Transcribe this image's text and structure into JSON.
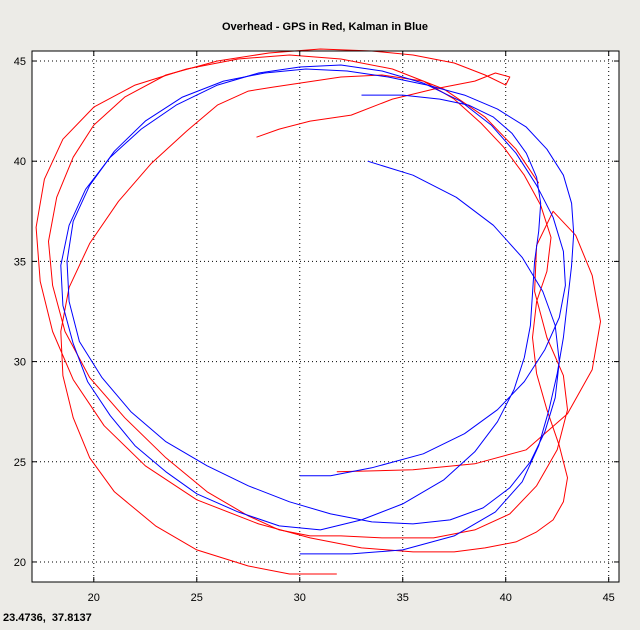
{
  "figure": {
    "background_color": "#ecebe7",
    "coordinate_readout": "23.4736,  37.8137"
  },
  "chart_data": {
    "type": "line",
    "title": "Overhead - GPS in Red, Kalman in Blue",
    "xlabel": "",
    "ylabel": "",
    "xlim": [
      17,
      45.5
    ],
    "ylim": [
      19,
      45.5
    ],
    "xticks": [
      20,
      25,
      30,
      35,
      40,
      45
    ],
    "yticks": [
      20,
      25,
      30,
      35,
      40,
      45
    ],
    "grid": true,
    "grid_style": "dotted",
    "legend": "none",
    "series": [
      {
        "color": "#ff0000",
        "x": [
          27.9,
          29.0,
          30.5,
          32.5,
          34.5,
          36.5,
          38.5,
          39.5,
          40.2,
          40.0,
          39.0,
          37.5,
          35.5,
          33.5,
          31.0,
          28.5,
          26.0,
          23.5,
          21.5,
          20.0,
          19.0,
          18.2,
          17.8,
          18.0,
          18.6,
          19.8,
          21.5,
          23.5,
          25.5,
          27.5,
          29.0,
          30.5,
          32.0,
          34.0,
          36.5,
          38.5,
          40.2,
          41.5,
          42.5,
          43.0,
          42.8,
          42.0,
          41.4,
          41.5,
          42.3,
          43.4,
          44.2,
          44.6,
          44.2,
          43.0,
          41.0,
          38.5,
          35.5,
          31.8
        ],
        "y": [
          41.2,
          41.6,
          42.0,
          42.3,
          43.1,
          43.6,
          44.0,
          44.4,
          44.2,
          43.8,
          44.3,
          44.9,
          45.3,
          45.5,
          45.6,
          45.4,
          45.0,
          44.3,
          43.2,
          41.8,
          40.2,
          38.2,
          36.0,
          33.8,
          31.5,
          29.2,
          27.2,
          25.2,
          23.5,
          22.3,
          21.6,
          21.3,
          21.3,
          21.2,
          21.2,
          21.6,
          22.4,
          23.8,
          25.6,
          27.6,
          29.3,
          31.2,
          33.5,
          35.8,
          37.5,
          36.3,
          34.3,
          32.0,
          29.6,
          27.4,
          25.6,
          24.9,
          24.6,
          24.5
        ]
      },
      {
        "color": "#ff0000",
        "x": [
          31.8,
          29.5,
          27.5,
          25.0,
          23.0,
          21.0,
          19.8,
          19.0,
          18.5,
          18.4,
          18.8,
          19.8,
          21.2,
          22.8,
          24.5,
          26.0,
          27.5,
          28.7,
          30.0,
          32.0,
          34.0,
          36.0,
          37.5,
          38.8,
          39.9,
          40.9,
          41.7,
          42.2,
          42.0,
          41.5,
          41.3,
          41.5,
          42.0,
          42.6,
          43.0,
          42.8,
          42.3,
          41.5,
          40.5,
          39.0,
          37.5,
          35.5,
          33.0,
          30.5,
          28.0,
          25.0,
          22.5,
          20.5,
          19.0,
          18.0,
          17.4,
          17.2,
          17.6,
          18.5,
          20.0,
          22.0,
          24.5,
          27.0,
          29.5,
          32.0,
          34.5,
          37.0,
          39.0,
          40.5,
          41.6
        ],
        "y": [
          19.4,
          19.4,
          19.8,
          20.6,
          21.8,
          23.5,
          25.2,
          27.2,
          29.3,
          31.5,
          33.7,
          35.9,
          38.0,
          39.9,
          41.5,
          42.8,
          43.5,
          43.7,
          43.9,
          44.2,
          44.3,
          44.0,
          43.1,
          41.9,
          40.7,
          39.3,
          37.8,
          36.2,
          34.5,
          33.0,
          31.2,
          29.4,
          27.6,
          25.8,
          24.2,
          23.0,
          22.1,
          21.5,
          21.0,
          20.7,
          20.5,
          20.5,
          20.7,
          21.2,
          21.9,
          23.1,
          24.8,
          26.8,
          29.1,
          31.5,
          34.0,
          36.7,
          39.1,
          41.1,
          42.7,
          43.8,
          44.6,
          45.1,
          45.3,
          45.1,
          44.6,
          43.6,
          42.2,
          40.6,
          38.9
        ]
      },
      {
        "color": "#0000ff",
        "x": [
          33.0,
          35.0,
          36.8,
          38.2,
          39.4,
          40.3,
          41.0,
          41.5,
          41.7,
          41.6,
          41.4,
          41.3,
          41.2,
          40.9,
          40.4,
          39.6,
          38.5,
          37.0,
          35.0,
          33.0,
          31.0,
          29.0,
          27.0,
          25.0,
          23.5,
          22.0,
          20.8,
          19.7,
          19.0,
          18.5,
          18.4,
          18.8,
          19.6,
          20.8,
          22.3,
          24.0,
          26.0,
          28.0,
          30.0,
          32.0,
          34.0,
          36.0,
          37.8,
          39.3,
          40.5,
          41.5,
          42.3,
          42.8,
          42.9,
          42.6,
          41.9,
          40.9,
          39.6,
          38.0,
          36.0,
          33.5,
          31.5,
          30.0
        ],
        "y": [
          43.3,
          43.3,
          43.1,
          42.8,
          42.2,
          41.4,
          40.4,
          39.2,
          37.9,
          36.5,
          35.0,
          33.4,
          31.8,
          30.2,
          28.6,
          27.0,
          25.5,
          24.1,
          22.9,
          22.1,
          21.6,
          21.8,
          22.5,
          23.4,
          24.5,
          25.8,
          27.3,
          29.0,
          30.9,
          32.8,
          34.8,
          36.8,
          38.6,
          40.2,
          41.6,
          42.8,
          43.8,
          44.4,
          44.7,
          44.8,
          44.5,
          43.9,
          43.0,
          41.8,
          40.4,
          38.8,
          37.2,
          35.5,
          33.8,
          32.2,
          30.6,
          29.0,
          27.6,
          26.4,
          25.4,
          24.7,
          24.3,
          24.3
        ]
      },
      {
        "color": "#0000ff",
        "x": [
          30.0,
          32.5,
          35.0,
          37.5,
          39.5,
          40.8,
          41.6,
          42.1,
          42.5,
          42.8,
          43.0,
          43.2,
          43.3,
          43.2,
          42.8,
          42.0,
          41.0,
          39.6,
          38.0,
          36.2,
          34.3,
          32.3,
          30.3,
          28.3,
          26.3,
          24.3,
          22.5,
          21.0,
          19.8,
          19.0,
          18.7,
          18.8,
          19.3,
          20.4,
          21.8,
          23.5,
          25.5,
          27.5,
          29.5,
          31.5,
          33.5,
          35.5,
          37.3,
          38.9,
          40.2,
          41.2,
          41.9,
          42.4,
          42.6,
          42.4,
          41.8,
          40.8,
          39.4,
          37.6,
          35.5,
          33.3
        ],
        "y": [
          20.4,
          20.4,
          20.6,
          21.3,
          22.5,
          24.0,
          25.8,
          27.6,
          29.4,
          31.2,
          33.0,
          34.8,
          36.4,
          37.9,
          39.3,
          40.6,
          41.7,
          42.6,
          43.3,
          43.8,
          44.2,
          44.5,
          44.6,
          44.4,
          44.0,
          43.2,
          42.0,
          40.5,
          38.8,
          37.0,
          35.0,
          33.0,
          31.0,
          29.2,
          27.5,
          26.0,
          24.8,
          23.8,
          23.0,
          22.4,
          22.0,
          21.9,
          22.1,
          22.7,
          23.7,
          25.0,
          26.5,
          28.2,
          30.0,
          31.8,
          33.5,
          35.2,
          36.8,
          38.2,
          39.3,
          40.0
        ]
      }
    ]
  }
}
